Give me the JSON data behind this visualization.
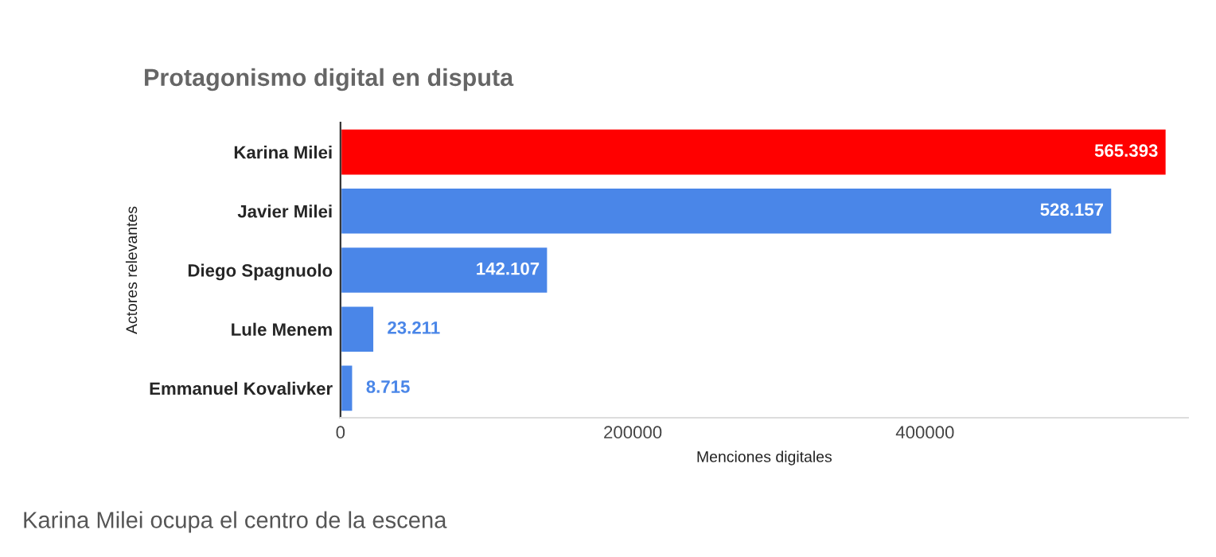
{
  "chart_data": {
    "type": "bar",
    "orientation": "horizontal",
    "title": "Protagonismo digital en disputa",
    "xlabel": "Menciones digitales",
    "ylabel": "Actores relevantes",
    "categories": [
      "Karina Milei",
      "Javier Milei",
      "Diego Spagnuolo",
      "Lule Menem",
      "Emmanuel Kovalivker"
    ],
    "values": [
      565393,
      528157,
      142107,
      23211,
      8715
    ],
    "colors": [
      "#ff0000",
      "#4a86e8",
      "#4a86e8",
      "#4a86e8",
      "#4a86e8"
    ],
    "value_labels": [
      "565.393",
      "528.157",
      "142.107",
      "23.211",
      "8.715"
    ],
    "xlim": [
      0,
      580000
    ],
    "xticks": [
      0,
      200000,
      400000
    ],
    "grid": false,
    "annotations": [
      "Karina Milei ocupa el centro de la escena"
    ]
  }
}
